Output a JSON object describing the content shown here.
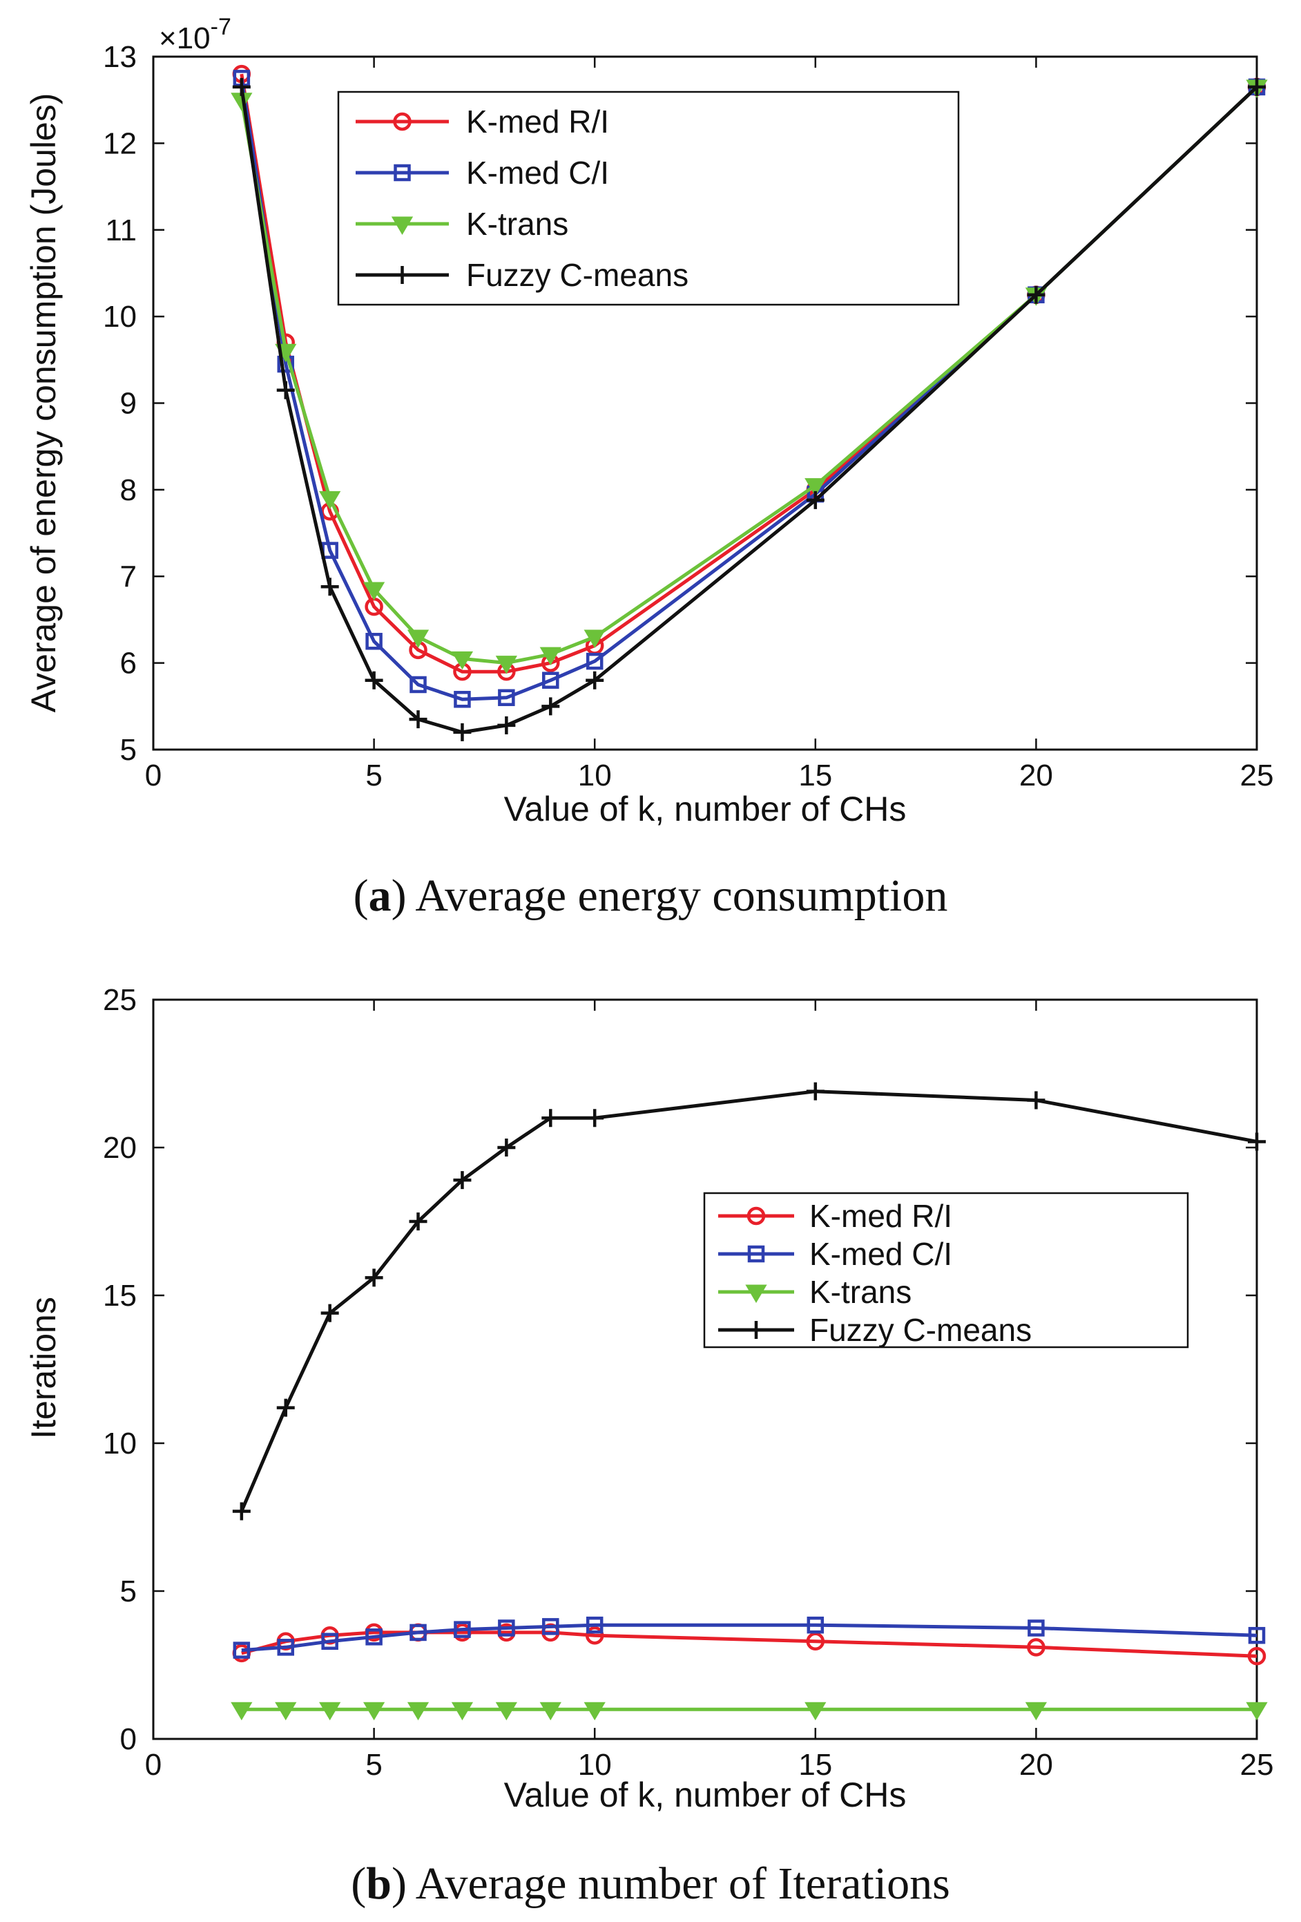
{
  "chart_data": [
    {
      "type": "line",
      "id": "a",
      "caption_label": "a",
      "caption_text": "Average energy consumption",
      "xlabel": "Value of k, number of CHs",
      "ylabel": "Average of energy consumption (Joules)",
      "multiplier": "×10",
      "multiplier_exp": "-7",
      "xlim": [
        0,
        25
      ],
      "ylim": [
        5,
        13
      ],
      "xticks": [
        "0",
        "5",
        "10",
        "15",
        "20",
        "25"
      ],
      "yticks": [
        "5",
        "6",
        "7",
        "8",
        "9",
        "10",
        "11",
        "12",
        "13"
      ],
      "legend_position": "top-center",
      "x": [
        2,
        3,
        4,
        5,
        6,
        7,
        8,
        9,
        10,
        15,
        20,
        25
      ],
      "series": [
        {
          "name": "K-med R/I",
          "color": "#e8202a",
          "marker": "circle",
          "values": [
            12.8,
            9.7,
            7.75,
            6.65,
            6.15,
            5.9,
            5.9,
            6.0,
            6.2,
            8.0,
            10.25,
            12.65
          ]
        },
        {
          "name": "K-med C/I",
          "color": "#2e3fb0",
          "marker": "square",
          "values": [
            12.75,
            9.45,
            7.3,
            6.25,
            5.75,
            5.58,
            5.6,
            5.8,
            6.02,
            7.95,
            10.25,
            12.65
          ]
        },
        {
          "name": "K-trans",
          "color": "#6cc23a",
          "marker": "triangle",
          "values": [
            12.5,
            9.6,
            7.9,
            6.85,
            6.3,
            6.05,
            6.0,
            6.1,
            6.3,
            8.05,
            10.25,
            12.65
          ]
        },
        {
          "name": "Fuzzy C-means",
          "color": "#111111",
          "marker": "plus",
          "values": [
            12.65,
            9.15,
            6.88,
            5.8,
            5.35,
            5.2,
            5.28,
            5.5,
            5.8,
            7.88,
            10.25,
            12.65
          ]
        }
      ]
    },
    {
      "type": "line",
      "id": "b",
      "caption_label": "b",
      "caption_text": "Average number of Iterations",
      "xlabel": "Value of k, number of CHs",
      "ylabel": "Iterations",
      "xlim": [
        0,
        25
      ],
      "ylim": [
        0,
        25
      ],
      "xticks": [
        "0",
        "5",
        "10",
        "15",
        "20",
        "25"
      ],
      "yticks": [
        "0",
        "5",
        "10",
        "15",
        "20",
        "25"
      ],
      "legend_position": "center-right",
      "x": [
        2,
        3,
        4,
        5,
        6,
        7,
        8,
        9,
        10,
        15,
        20,
        25
      ],
      "series": [
        {
          "name": "K-med R/I",
          "color": "#e8202a",
          "marker": "circle",
          "values": [
            2.9,
            3.3,
            3.5,
            3.6,
            3.6,
            3.6,
            3.6,
            3.6,
            3.5,
            3.3,
            3.1,
            2.8
          ]
        },
        {
          "name": "K-med C/I",
          "color": "#2e3fb0",
          "marker": "square",
          "values": [
            3.0,
            3.1,
            3.3,
            3.45,
            3.6,
            3.7,
            3.75,
            3.8,
            3.85,
            3.85,
            3.75,
            3.5
          ]
        },
        {
          "name": "K-trans",
          "color": "#6cc23a",
          "marker": "triangle",
          "values": [
            1,
            1,
            1,
            1,
            1,
            1,
            1,
            1,
            1,
            1,
            1,
            1
          ]
        },
        {
          "name": "Fuzzy C-means",
          "color": "#111111",
          "marker": "plus",
          "values": [
            7.7,
            11.2,
            14.4,
            15.6,
            17.5,
            18.9,
            20.0,
            21.0,
            21.0,
            21.9,
            21.6,
            20.2
          ]
        }
      ]
    }
  ]
}
